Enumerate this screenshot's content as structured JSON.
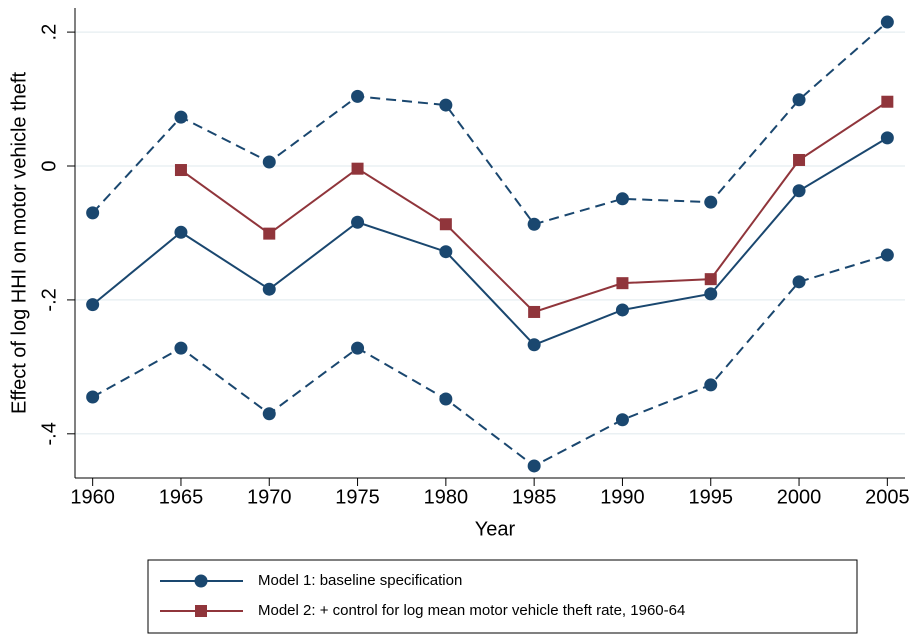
{
  "chart_data": {
    "type": "line",
    "y_label": "Effect of log HHI on motor vehicle theft",
    "x_label": "Year",
    "x": [
      1960,
      1965,
      1970,
      1975,
      1980,
      1985,
      1990,
      1995,
      2000,
      2005
    ],
    "xlim": [
      1959,
      2006
    ],
    "xticks": [
      1960,
      1965,
      1970,
      1975,
      1980,
      1985,
      1990,
      1995,
      2000,
      2005
    ],
    "ylim": [
      -0.466,
      0.236
    ],
    "yticks": [
      {
        "value": -0.4,
        "label": "-.4"
      },
      {
        "value": -0.2,
        "label": "-.2"
      },
      {
        "value": 0,
        "label": "0"
      },
      {
        "value": 0.2,
        "label": ".2"
      }
    ],
    "grid": true,
    "legend": "bottom",
    "series": [
      {
        "name": "Model 1: baseline specification",
        "color": "#1a476f",
        "marker": "circle",
        "line_style": "solid",
        "values": [
          -0.207,
          -0.099,
          -0.184,
          -0.084,
          -0.128,
          -0.267,
          -0.215,
          -0.191,
          -0.037,
          0.042
        ]
      },
      {
        "name": "Model 2: + control for log mean motor vehicle theft rate, 1960-64",
        "color": "#90353b",
        "marker": "square",
        "line_style": "solid",
        "values": [
          null,
          -0.006,
          -0.101,
          -0.004,
          -0.087,
          -0.218,
          -0.175,
          -0.169,
          0.009,
          0.096
        ]
      },
      {
        "color": "#1a476f",
        "marker": "circle",
        "line_style": "dashed",
        "values": [
          -0.07,
          0.073,
          0.006,
          0.104,
          0.091,
          -0.087,
          -0.049,
          -0.054,
          0.099,
          0.215
        ]
      },
      {
        "color": "#1a476f",
        "marker": "circle",
        "line_style": "dashed",
        "values": [
          -0.345,
          -0.272,
          -0.37,
          -0.272,
          -0.348,
          -0.448,
          -0.379,
          -0.327,
          -0.173,
          -0.133
        ]
      }
    ]
  }
}
